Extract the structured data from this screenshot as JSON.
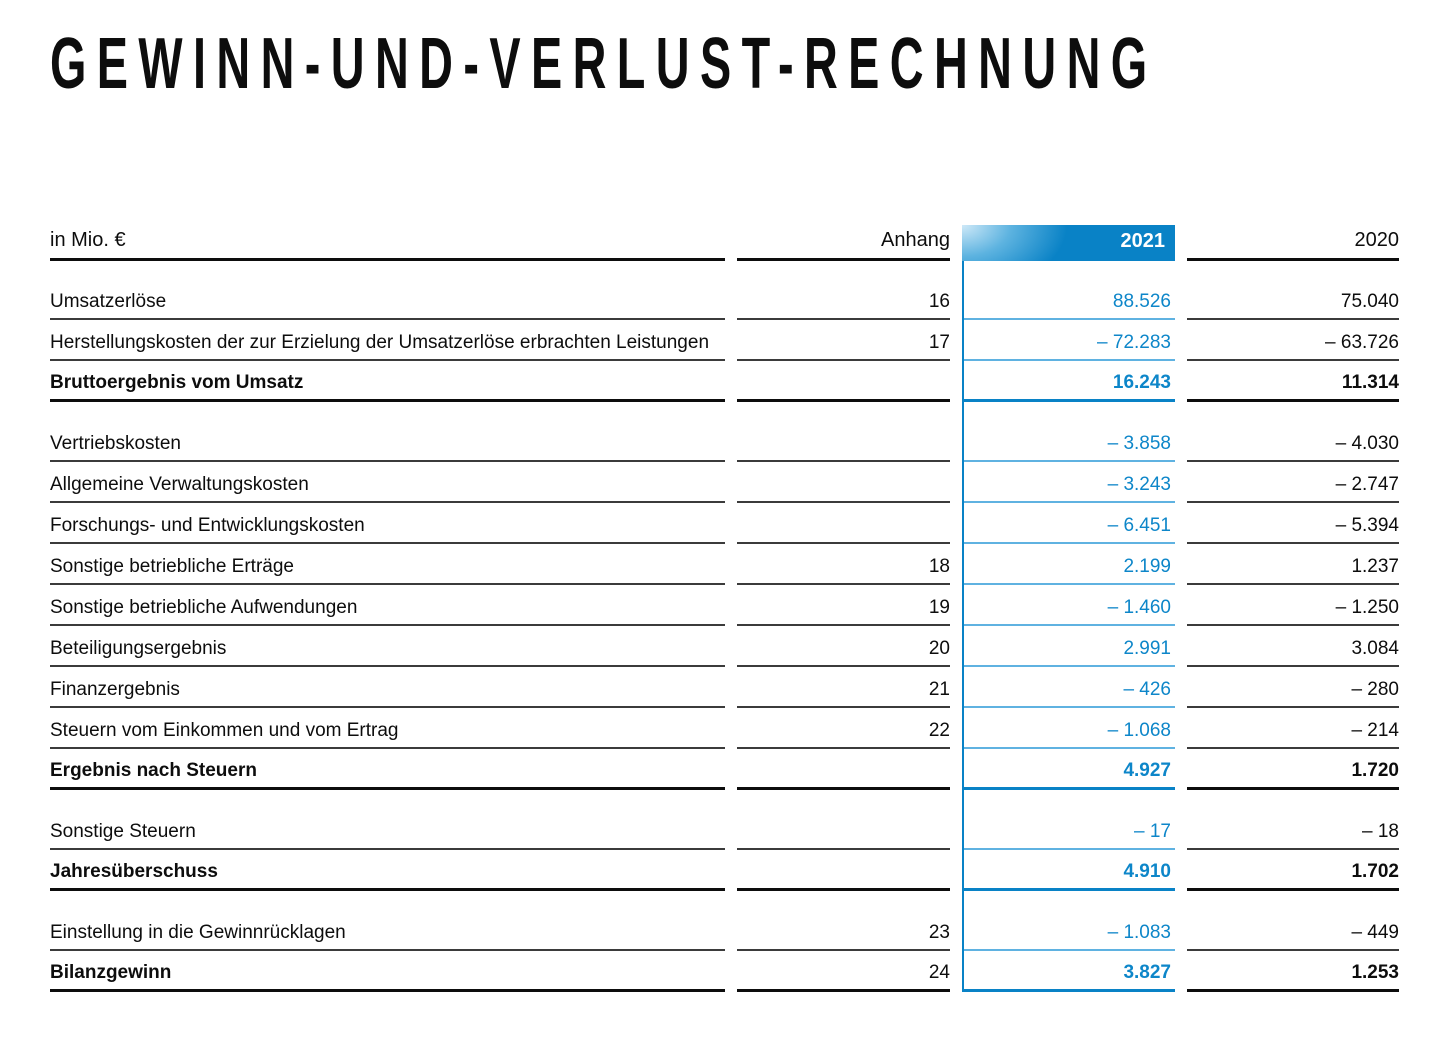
{
  "title": "GEWINN-UND-VERLUST-RECHNUNG",
  "colors": {
    "brand_blue": "#0982c6",
    "value_blue": "#0d86c9",
    "light_blue_rule": "#5fb2e1",
    "dark_rule": "#3b3b3b",
    "black": "#0d0d0d"
  },
  "table": {
    "unit_label": "in Mio. €",
    "columns": {
      "anhang": "Anhang",
      "y2021": "2021",
      "y2020": "2020"
    },
    "rows": [
      {
        "label": "Umsatzerlöse",
        "anhang": "16",
        "y2021": "88.526",
        "y2020": "75.040",
        "bold": false,
        "spacer_after": false
      },
      {
        "label": "Herstellungskosten der zur Erzielung der Umsatzerlöse erbrachten Leistungen",
        "anhang": "17",
        "y2021": "– 72.283",
        "y2020": "– 63.726",
        "bold": false,
        "spacer_after": false
      },
      {
        "label": "Bruttoergebnis vom Umsatz",
        "anhang": "",
        "y2021": "16.243",
        "y2020": "11.314",
        "bold": true,
        "spacer_after": true
      },
      {
        "label": "Vertriebskosten",
        "anhang": "",
        "y2021": "– 3.858",
        "y2020": "– 4.030",
        "bold": false,
        "spacer_after": false
      },
      {
        "label": "Allgemeine Verwaltungskosten",
        "anhang": "",
        "y2021": "– 3.243",
        "y2020": "– 2.747",
        "bold": false,
        "spacer_after": false
      },
      {
        "label": "Forschungs- und Entwicklungskosten",
        "anhang": "",
        "y2021": "– 6.451",
        "y2020": "– 5.394",
        "bold": false,
        "spacer_after": false
      },
      {
        "label": "Sonstige betriebliche Erträge",
        "anhang": "18",
        "y2021": "2.199",
        "y2020": "1.237",
        "bold": false,
        "spacer_after": false
      },
      {
        "label": "Sonstige betriebliche Aufwendungen",
        "anhang": "19",
        "y2021": "– 1.460",
        "y2020": "– 1.250",
        "bold": false,
        "spacer_after": false
      },
      {
        "label": "Beteiligungsergebnis",
        "anhang": "20",
        "y2021": "2.991",
        "y2020": "3.084",
        "bold": false,
        "spacer_after": false
      },
      {
        "label": "Finanzergebnis",
        "anhang": "21",
        "y2021": "– 426",
        "y2020": "– 280",
        "bold": false,
        "spacer_after": false
      },
      {
        "label": "Steuern vom Einkommen und vom Ertrag",
        "anhang": "22",
        "y2021": "– 1.068",
        "y2020": "– 214",
        "bold": false,
        "spacer_after": false
      },
      {
        "label": "Ergebnis nach Steuern",
        "anhang": "",
        "y2021": "4.927",
        "y2020": "1.720",
        "bold": true,
        "spacer_after": true
      },
      {
        "label": "Sonstige Steuern",
        "anhang": "",
        "y2021": "– 17",
        "y2020": "– 18",
        "bold": false,
        "spacer_after": false
      },
      {
        "label": "Jahresüberschuss",
        "anhang": "",
        "y2021": "4.910",
        "y2020": "1.702",
        "bold": true,
        "spacer_after": true
      },
      {
        "label": "Einstellung in die Gewinnrücklagen",
        "anhang": "23",
        "y2021": "– 1.083",
        "y2020": "– 449",
        "bold": false,
        "spacer_after": false
      },
      {
        "label": "Bilanzgewinn",
        "anhang": "24",
        "y2021": "3.827",
        "y2020": "1.253",
        "bold": true,
        "spacer_after": false
      }
    ]
  }
}
